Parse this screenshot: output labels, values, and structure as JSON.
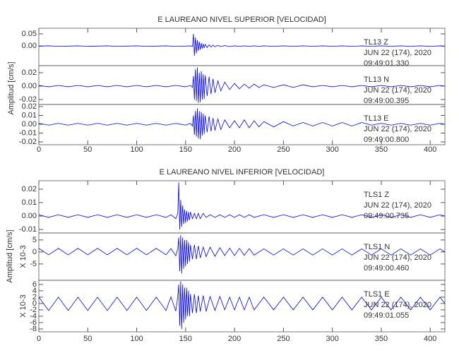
{
  "chart_data": [
    {
      "type": "line",
      "title": "E LAUREANO NIVEL SUPERIOR [VELOCIDAD]",
      "ylabel": "Amplitud [cm/s]",
      "color": "#0000ff",
      "xlim": [
        0,
        415
      ],
      "xticks": [
        0,
        50,
        100,
        150,
        200,
        250,
        300,
        350,
        400
      ],
      "x": [
        0,
        10,
        20,
        30,
        40,
        50,
        60,
        70,
        80,
        90,
        100,
        110,
        120,
        130,
        140,
        150,
        155,
        157,
        158,
        159,
        160,
        161,
        162,
        163,
        164,
        165,
        166,
        167,
        168,
        169,
        170,
        172,
        174,
        176,
        178,
        180,
        183,
        186,
        190,
        195,
        200,
        205,
        210,
        215,
        220,
        225,
        230,
        240,
        250,
        260,
        270,
        280,
        290,
        300,
        310,
        320,
        330,
        340,
        350,
        360,
        370,
        380,
        390,
        400,
        410,
        415
      ],
      "panels": [
        {
          "name": "TL13 Z",
          "date": "JUN 22 (174), 2020",
          "time": "09:49:01.330",
          "ylim": [
            -0.08,
            0.073
          ],
          "yticks": [
            0.05,
            {
              "value": 0,
              "label": "0.00"
            }
          ],
          "values": [
            0,
            0.001,
            -0.001,
            0,
            0.001,
            -0.001,
            0,
            0.001,
            -0.001,
            0,
            0.001,
            -0.001,
            0,
            0.001,
            -0.001,
            0,
            0.001,
            -0.002,
            0.05,
            -0.04,
            0.035,
            -0.03,
            0.025,
            -0.02,
            0.018,
            -0.015,
            0.012,
            -0.01,
            0.009,
            -0.008,
            0.007,
            -0.006,
            0.005,
            -0.004,
            0.004,
            -0.003,
            0.003,
            -0.002,
            0.002,
            -0.002,
            0.001,
            -0.001,
            0.001,
            -0.001,
            0.001,
            -0.001,
            0.001,
            -0.001,
            0.001,
            -0.001,
            0.001,
            -0.001,
            0.001,
            -0.001,
            0.001,
            -0.001,
            0.001,
            -0.001,
            0.001,
            -0.001,
            0.001,
            -0.001,
            0.001,
            -0.001,
            0.001,
            0
          ]
        },
        {
          "name": "TL13 N",
          "date": "JUN 22 (174), 2020",
          "time": "09:49:00.395",
          "ylim": [
            -0.0274,
            0.0305
          ],
          "yticks": [
            0.02,
            {
              "value": 0,
              "label": "0.00"
            },
            -0.02
          ],
          "values": [
            0.001,
            -0.001,
            0.001,
            -0.001,
            0.001,
            -0.001,
            0.001,
            -0.001,
            0.001,
            -0.001,
            0.001,
            -0.001,
            0.001,
            -0.001,
            0.001,
            -0.001,
            0.001,
            -0.002,
            0.015,
            -0.02,
            0.025,
            -0.022,
            0.028,
            -0.025,
            0.02,
            -0.024,
            0.022,
            -0.02,
            0.018,
            -0.019,
            0.016,
            -0.015,
            0.014,
            -0.012,
            0.011,
            -0.01,
            0.008,
            -0.007,
            0.006,
            -0.005,
            0.004,
            -0.004,
            0.003,
            -0.003,
            0.003,
            -0.002,
            0.002,
            -0.002,
            0.002,
            -0.002,
            0.002,
            -0.001,
            0.001,
            -0.001,
            0.001,
            -0.001,
            0.001,
            -0.001,
            0.001,
            -0.001,
            0.001,
            -0.001,
            0.001,
            -0.001,
            0.001,
            0
          ]
        },
        {
          "name": "TL13 E",
          "date": "JUN 22 (174), 2020",
          "time": "09:49:00.800",
          "ylim": [
            -0.0232,
            0.0224
          ],
          "yticks": [
            0.02,
            0.01,
            {
              "value": 0,
              "label": "0.00"
            },
            -0.01,
            -0.02
          ],
          "values": [
            0.001,
            -0.001,
            0.001,
            -0.001,
            0.001,
            -0.001,
            0.001,
            -0.001,
            0.001,
            -0.001,
            0.001,
            -0.001,
            0.001,
            -0.001,
            0.001,
            -0.001,
            0.001,
            -0.002,
            0.01,
            -0.012,
            0.015,
            -0.014,
            0.018,
            -0.016,
            0.015,
            -0.017,
            0.014,
            -0.013,
            0.012,
            -0.011,
            0.01,
            -0.009,
            0.009,
            -0.008,
            0.007,
            -0.007,
            0.006,
            -0.006,
            0.005,
            -0.004,
            0.004,
            -0.004,
            0.005,
            -0.004,
            0.004,
            -0.003,
            0.003,
            -0.003,
            0.003,
            -0.002,
            0.002,
            -0.002,
            0.002,
            -0.002,
            0.002,
            -0.002,
            0.002,
            -0.001,
            0.001,
            -0.001,
            0.001,
            -0.001,
            0.001,
            -0.001,
            0.001,
            0
          ]
        }
      ]
    },
    {
      "type": "line",
      "title": "E LAUREANO NIVEL INFERIOR [VELOCIDAD]",
      "ylabel": "Amplitud [cm/s]",
      "color": "#0000ff",
      "xlim": [
        0,
        415
      ],
      "xticks": [
        0,
        50,
        100,
        150,
        200,
        250,
        300,
        350,
        400
      ],
      "x": [
        0,
        10,
        20,
        30,
        40,
        50,
        60,
        70,
        80,
        90,
        100,
        110,
        120,
        130,
        135,
        140,
        142,
        143,
        144,
        145,
        146,
        147,
        148,
        149,
        150,
        151,
        152,
        153,
        154,
        155,
        157,
        159,
        161,
        163,
        165,
        168,
        171,
        175,
        180,
        185,
        190,
        195,
        200,
        205,
        210,
        215,
        220,
        230,
        240,
        250,
        260,
        270,
        280,
        290,
        300,
        310,
        320,
        330,
        340,
        350,
        360,
        370,
        380,
        390,
        400,
        410,
        415
      ],
      "panels": [
        {
          "name": "TLS1 Z",
          "date": "JUN 22 (174), 2020",
          "time": "09:49:00.735",
          "ylim": [
            -0.0126,
            0.0263
          ],
          "yticks": [
            0.02,
            0.01,
            {
              "value": 0,
              "label": "0.00"
            },
            -0.01
          ],
          "values": [
            0.001,
            -0.001,
            0.001,
            -0.001,
            0.001,
            -0.001,
            0.001,
            -0.001,
            0.001,
            -0.001,
            0.001,
            -0.001,
            0.001,
            -0.001,
            0.001,
            -0.002,
            0.002,
            0.025,
            -0.01,
            0.012,
            -0.008,
            0.008,
            -0.006,
            0.005,
            -0.005,
            0.004,
            -0.004,
            0.003,
            -0.003,
            0.003,
            -0.002,
            0.002,
            -0.002,
            0.002,
            -0.002,
            0.002,
            -0.001,
            0.001,
            -0.001,
            0.001,
            -0.001,
            0.001,
            -0.001,
            0.001,
            -0.001,
            0.001,
            -0.001,
            0.001,
            -0.001,
            0.001,
            -0.001,
            0.001,
            -0.001,
            0.001,
            -0.001,
            0.001,
            -0.001,
            0.001,
            -0.001,
            0.001,
            -0.001,
            0.001,
            -0.001,
            0.001,
            -0.001,
            0.001,
            0
          ]
        },
        {
          "name": "TLS1 N",
          "date": "JUN 22 (174), 2020",
          "time": "09:49:00.460",
          "multiplier": "X 10-3",
          "ylim": [
            -11.8,
            7.9
          ],
          "yticks": [
            5,
            0,
            -5
          ],
          "values": [
            1.5,
            -1.2,
            1.5,
            -1.2,
            1.5,
            -1.2,
            1.5,
            -1.2,
            1.5,
            -1.2,
            1.5,
            -1.2,
            1.5,
            -1.2,
            1.4,
            -1.6,
            1.5,
            6,
            -8,
            7,
            -9,
            6,
            -7,
            5,
            -6,
            5,
            -5,
            4,
            -4,
            3,
            -3,
            3,
            -3,
            2.5,
            -2.5,
            2,
            -2,
            2,
            -1.8,
            1.8,
            -1.5,
            1.6,
            -1.5,
            1.5,
            -1.4,
            1.4,
            -1.3,
            1.3,
            -1.3,
            1.3,
            -1.3,
            1.3,
            -1.3,
            1.3,
            -1.3,
            1.3,
            -1.3,
            1.3,
            -1.3,
            1.3,
            -1.3,
            1.3,
            -1.3,
            1.3,
            -1.3,
            1.3,
            0
          ]
        },
        {
          "name": "TLS1 E",
          "date": "JUN 22 (174), 2020",
          "time": "09:49:01.055",
          "multiplier": "X 10-3",
          "ylim": [
            -8.9,
            7.3
          ],
          "yticks": [
            6,
            4,
            2,
            0,
            -2,
            -4,
            -6,
            -8
          ],
          "values": [
            2,
            -2.2,
            2,
            -2.2,
            2,
            -2.2,
            2,
            -2.2,
            2,
            -2.2,
            2,
            -2.2,
            2,
            -2.2,
            2.1,
            -2.4,
            2.3,
            6,
            -7,
            7,
            -8,
            6,
            -6,
            5,
            -5,
            5,
            -4,
            4,
            -4,
            3,
            -3,
            3,
            -3,
            2.5,
            -2.5,
            2.5,
            -2.5,
            2.2,
            -2.2,
            2.2,
            -2,
            2,
            -2,
            2,
            -2,
            2,
            -2,
            2,
            -2,
            2,
            -2,
            2,
            -2,
            2,
            -2,
            2,
            -2,
            2,
            -2,
            2,
            -2,
            2,
            -2,
            2,
            -2,
            2,
            0
          ]
        }
      ]
    }
  ]
}
